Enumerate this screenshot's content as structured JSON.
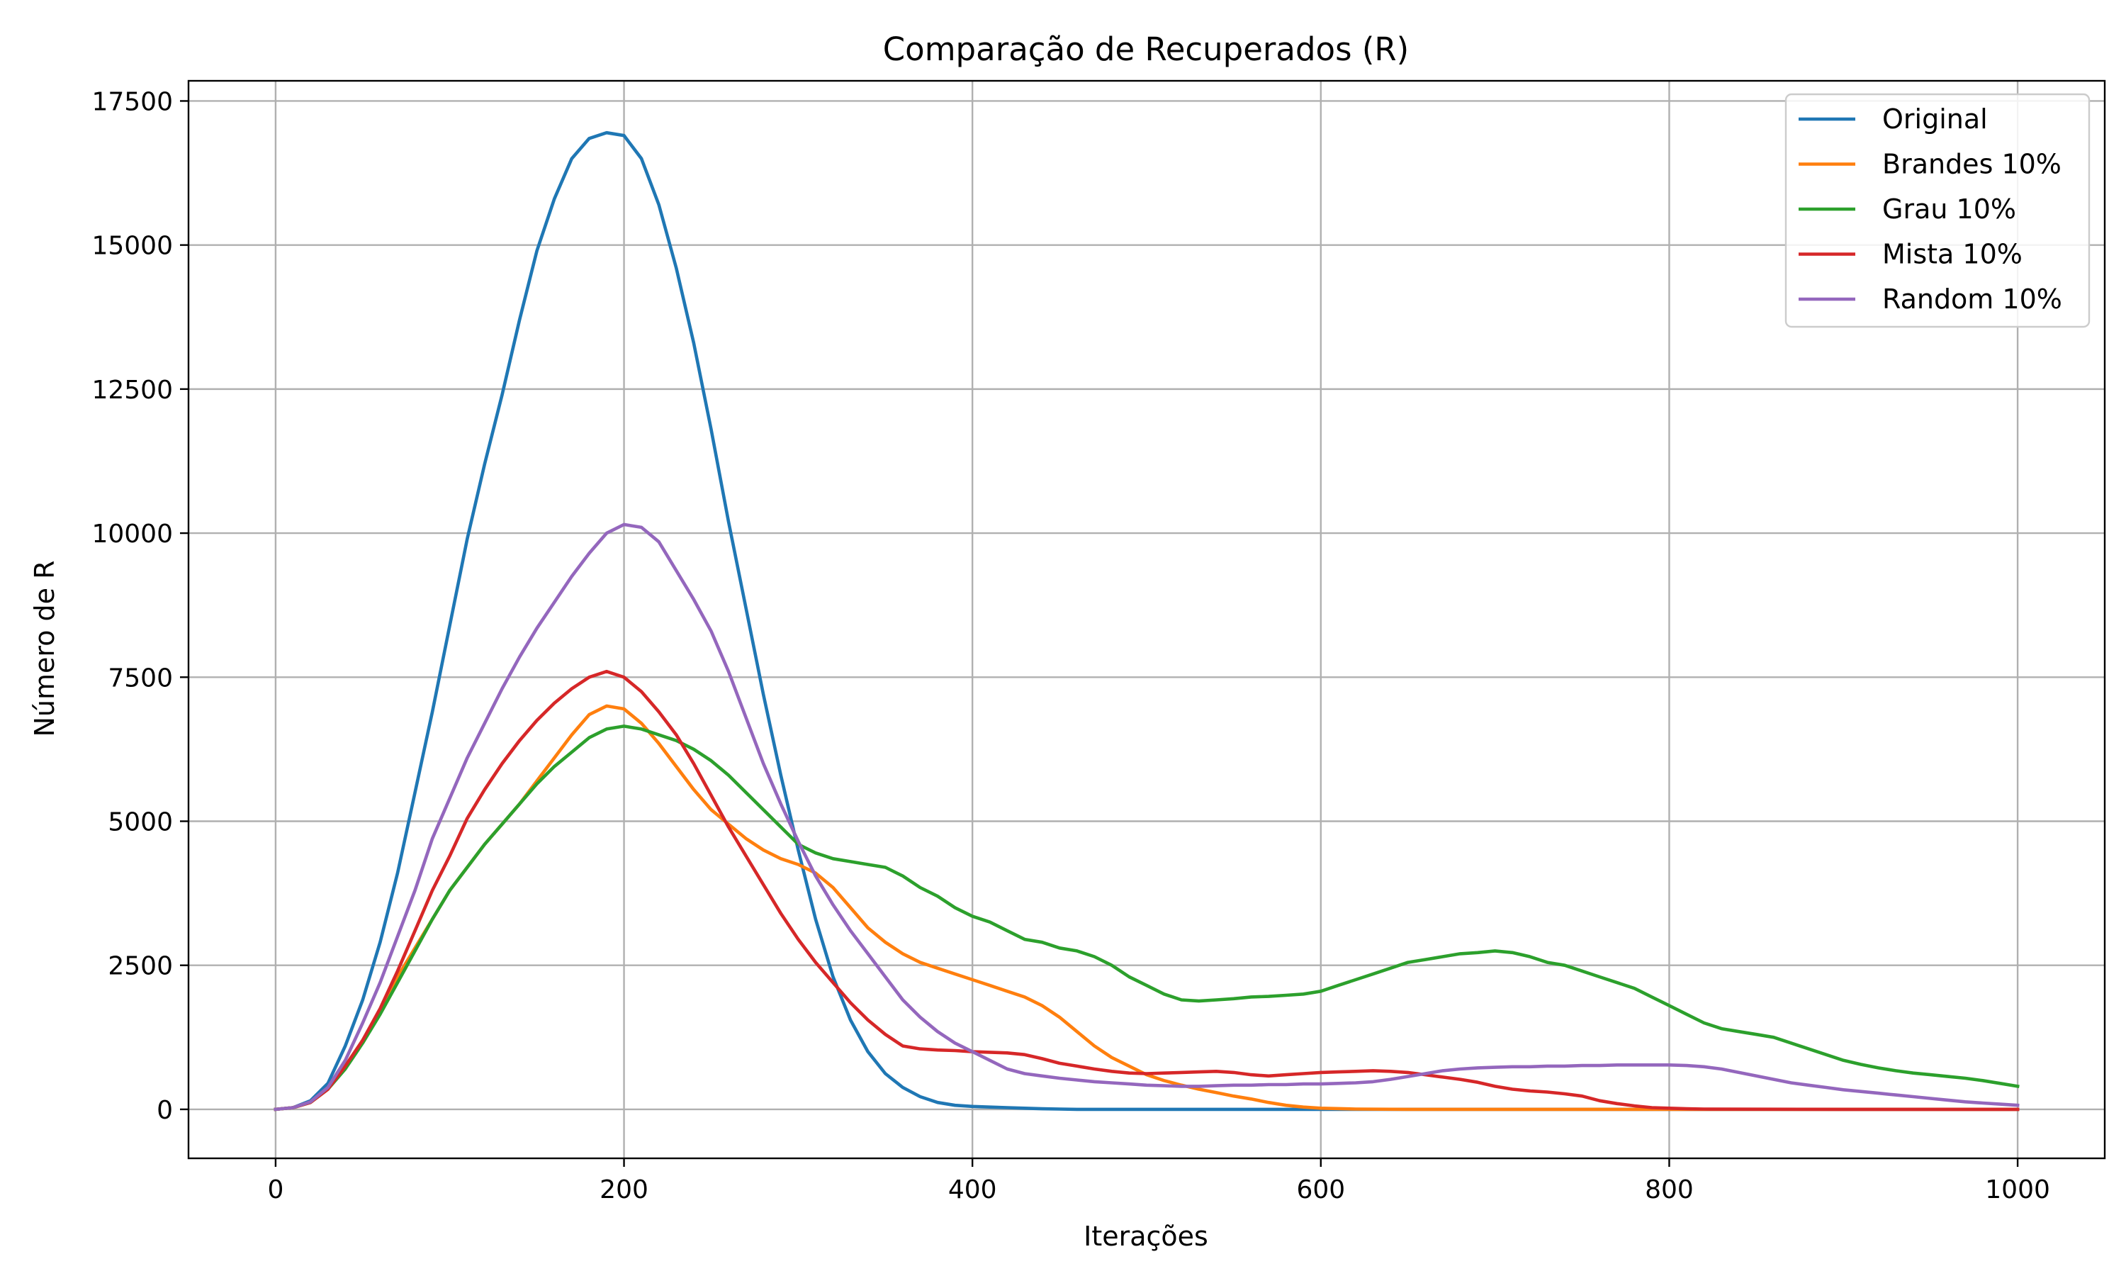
{
  "chart_data": {
    "type": "line",
    "title": "Comparação de Recuperados (R)",
    "xlabel": "Iterações",
    "ylabel": "Número de R",
    "xlim": [
      -50,
      1050
    ],
    "ylim": [
      -850,
      17850
    ],
    "xticks": [
      0,
      200,
      400,
      600,
      800,
      1000
    ],
    "xtick_labels": [
      "0",
      "200",
      "400",
      "600",
      "800",
      "1000"
    ],
    "yticks": [
      0,
      2500,
      5000,
      7500,
      10000,
      12500,
      15000,
      17500
    ],
    "ytick_labels": [
      "0",
      "2500",
      "5000",
      "7500",
      "10000",
      "12500",
      "15000",
      "17500"
    ],
    "grid": true,
    "legend_position": "upper right",
    "series": [
      {
        "name": "Original",
        "color": "#1f77b4",
        "x": [
          0,
          10,
          20,
          30,
          40,
          50,
          60,
          70,
          80,
          90,
          100,
          110,
          120,
          130,
          140,
          150,
          160,
          170,
          180,
          190,
          200,
          210,
          220,
          230,
          240,
          250,
          260,
          270,
          280,
          290,
          300,
          310,
          320,
          330,
          340,
          350,
          360,
          370,
          380,
          390,
          400,
          410,
          420,
          430,
          440,
          450,
          460,
          480,
          500,
          550,
          600,
          700,
          800,
          900,
          1000
        ],
        "y": [
          0,
          30,
          150,
          450,
          1100,
          1900,
          2900,
          4100,
          5500,
          6900,
          8400,
          9900,
          11200,
          12400,
          13700,
          14900,
          15800,
          16500,
          16850,
          16950,
          16900,
          16500,
          15700,
          14600,
          13300,
          11800,
          10200,
          8700,
          7200,
          5800,
          4500,
          3300,
          2300,
          1550,
          1000,
          620,
          380,
          220,
          120,
          70,
          50,
          40,
          30,
          20,
          10,
          5,
          0,
          0,
          0,
          0,
          0,
          0,
          0,
          0,
          0
        ]
      },
      {
        "name": "Brandes 10%",
        "color": "#ff7f0e",
        "x": [
          0,
          10,
          20,
          30,
          40,
          50,
          60,
          70,
          80,
          90,
          100,
          110,
          120,
          130,
          140,
          150,
          160,
          170,
          180,
          190,
          200,
          210,
          220,
          230,
          240,
          250,
          260,
          270,
          280,
          290,
          300,
          310,
          320,
          330,
          340,
          350,
          360,
          370,
          380,
          390,
          400,
          410,
          420,
          430,
          440,
          450,
          460,
          470,
          480,
          490,
          500,
          510,
          520,
          530,
          540,
          550,
          560,
          570,
          580,
          590,
          600,
          620,
          650,
          700,
          750,
          800,
          900,
          1000
        ],
        "y": [
          0,
          30,
          120,
          350,
          750,
          1200,
          1700,
          2300,
          2800,
          3300,
          3800,
          4200,
          4600,
          4950,
          5300,
          5700,
          6100,
          6500,
          6850,
          7000,
          6950,
          6700,
          6350,
          5950,
          5550,
          5200,
          4950,
          4700,
          4500,
          4350,
          4250,
          4100,
          3850,
          3500,
          3150,
          2900,
          2700,
          2550,
          2450,
          2350,
          2250,
          2150,
          2050,
          1950,
          1800,
          1600,
          1350,
          1100,
          900,
          750,
          600,
          500,
          420,
          350,
          290,
          230,
          180,
          120,
          70,
          40,
          20,
          5,
          0,
          0,
          0,
          0,
          0,
          0
        ]
      },
      {
        "name": "Grau 10%",
        "color": "#2ca02c",
        "x": [
          0,
          10,
          20,
          30,
          40,
          50,
          60,
          70,
          80,
          90,
          100,
          110,
          120,
          130,
          140,
          150,
          160,
          170,
          180,
          190,
          200,
          210,
          220,
          230,
          240,
          250,
          260,
          270,
          280,
          290,
          300,
          310,
          320,
          330,
          340,
          350,
          360,
          370,
          380,
          390,
          400,
          410,
          420,
          430,
          440,
          450,
          460,
          470,
          480,
          490,
          500,
          510,
          520,
          530,
          540,
          550,
          560,
          570,
          580,
          590,
          600,
          610,
          620,
          630,
          640,
          650,
          660,
          670,
          680,
          690,
          700,
          710,
          720,
          730,
          740,
          750,
          760,
          770,
          780,
          790,
          800,
          810,
          820,
          830,
          840,
          850,
          860,
          870,
          880,
          890,
          900,
          910,
          920,
          930,
          940,
          950,
          960,
          970,
          980,
          990,
          1000
        ],
        "y": [
          0,
          30,
          120,
          350,
          700,
          1150,
          1650,
          2200,
          2750,
          3300,
          3800,
          4200,
          4600,
          4950,
          5300,
          5650,
          5950,
          6200,
          6450,
          6600,
          6650,
          6600,
          6500,
          6400,
          6250,
          6050,
          5800,
          5500,
          5200,
          4900,
          4600,
          4450,
          4350,
          4300,
          4250,
          4200,
          4050,
          3850,
          3700,
          3500,
          3350,
          3250,
          3100,
          2950,
          2900,
          2800,
          2750,
          2650,
          2500,
          2300,
          2150,
          2000,
          1900,
          1880,
          1900,
          1920,
          1950,
          1960,
          1980,
          2000,
          2050,
          2150,
          2250,
          2350,
          2450,
          2550,
          2600,
          2650,
          2700,
          2720,
          2750,
          2720,
          2650,
          2550,
          2500,
          2400,
          2300,
          2200,
          2100,
          1950,
          1800,
          1650,
          1500,
          1400,
          1350,
          1300,
          1250,
          1150,
          1050,
          950,
          850,
          780,
          720,
          670,
          630,
          600,
          570,
          540,
          500,
          450,
          400
        ]
      },
      {
        "name": "Mista 10%",
        "color": "#d62728",
        "x": [
          0,
          10,
          20,
          30,
          40,
          50,
          60,
          70,
          80,
          90,
          100,
          110,
          120,
          130,
          140,
          150,
          160,
          170,
          180,
          190,
          200,
          210,
          220,
          230,
          240,
          250,
          260,
          270,
          280,
          290,
          300,
          310,
          320,
          330,
          340,
          350,
          360,
          370,
          380,
          390,
          400,
          410,
          420,
          430,
          440,
          450,
          460,
          470,
          480,
          490,
          500,
          510,
          520,
          530,
          540,
          550,
          560,
          570,
          580,
          590,
          600,
          610,
          620,
          630,
          640,
          650,
          660,
          670,
          680,
          690,
          700,
          710,
          720,
          730,
          740,
          750,
          760,
          770,
          780,
          790,
          800,
          810,
          820,
          900,
          1000
        ],
        "y": [
          0,
          30,
          120,
          350,
          750,
          1200,
          1750,
          2400,
          3100,
          3800,
          4400,
          5050,
          5550,
          6000,
          6400,
          6750,
          7050,
          7300,
          7500,
          7600,
          7500,
          7250,
          6900,
          6500,
          6000,
          5450,
          4900,
          4400,
          3900,
          3400,
          2950,
          2550,
          2200,
          1850,
          1550,
          1300,
          1100,
          1050,
          1030,
          1020,
          1000,
          990,
          980,
          950,
          880,
          800,
          750,
          700,
          660,
          630,
          620,
          630,
          640,
          650,
          660,
          640,
          600,
          580,
          600,
          620,
          640,
          650,
          660,
          670,
          660,
          640,
          600,
          560,
          520,
          470,
          400,
          350,
          320,
          300,
          270,
          230,
          150,
          100,
          60,
          30,
          20,
          10,
          5,
          0,
          0
        ]
      },
      {
        "name": "Random 10%",
        "color": "#9467bd",
        "x": [
          0,
          10,
          20,
          30,
          40,
          50,
          60,
          70,
          80,
          90,
          100,
          110,
          120,
          130,
          140,
          150,
          160,
          170,
          180,
          190,
          200,
          210,
          220,
          230,
          240,
          250,
          260,
          270,
          280,
          290,
          300,
          310,
          320,
          330,
          340,
          350,
          360,
          370,
          380,
          390,
          400,
          410,
          420,
          430,
          440,
          450,
          460,
          470,
          480,
          490,
          500,
          510,
          520,
          530,
          540,
          550,
          560,
          570,
          580,
          590,
          600,
          610,
          620,
          630,
          640,
          650,
          660,
          670,
          680,
          690,
          700,
          710,
          720,
          730,
          740,
          750,
          760,
          770,
          780,
          790,
          800,
          810,
          820,
          830,
          840,
          850,
          860,
          870,
          880,
          890,
          900,
          910,
          920,
          930,
          940,
          950,
          960,
          970,
          980,
          990,
          1000
        ],
        "y": [
          0,
          30,
          130,
          380,
          850,
          1500,
          2200,
          3000,
          3800,
          4700,
          5400,
          6100,
          6700,
          7300,
          7850,
          8350,
          8800,
          9250,
          9650,
          10000,
          10150,
          10100,
          9850,
          9350,
          8850,
          8300,
          7600,
          6800,
          6000,
          5300,
          4650,
          4050,
          3550,
          3100,
          2700,
          2300,
          1900,
          1600,
          1350,
          1150,
          1000,
          850,
          700,
          620,
          580,
          540,
          510,
          480,
          460,
          440,
          420,
          410,
          400,
          400,
          410,
          420,
          420,
          430,
          430,
          440,
          440,
          450,
          460,
          480,
          520,
          570,
          620,
          670,
          700,
          720,
          730,
          740,
          740,
          750,
          750,
          760,
          760,
          770,
          770,
          770,
          770,
          760,
          740,
          700,
          640,
          580,
          520,
          460,
          420,
          380,
          340,
          310,
          280,
          250,
          220,
          190,
          160,
          130,
          110,
          90,
          70
        ]
      }
    ]
  }
}
